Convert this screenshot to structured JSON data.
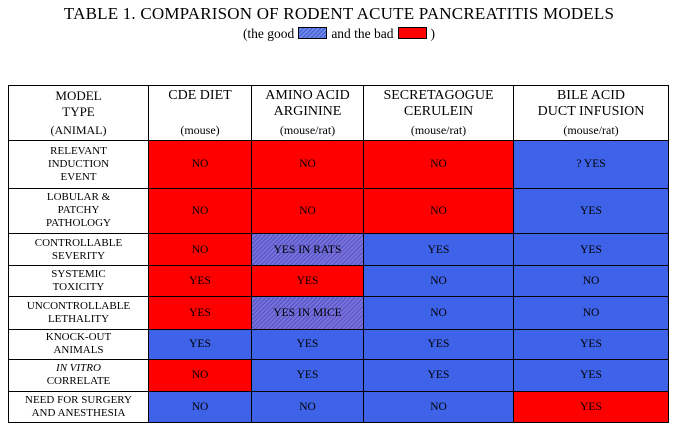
{
  "title": "TABLE 1. COMPARISON OF RODENT ACUTE PANCREATITIS MODELS",
  "subtitle": {
    "prefix": "(the good",
    "middle": "and the bad",
    "suffix": ")"
  },
  "colors": {
    "bad": "#ff0000",
    "good": "#3f63e8"
  },
  "columns": [
    {
      "line1": "MODEL",
      "line2": "TYPE",
      "line3": "(ANIMAL)"
    },
    {
      "line1": "CDE DIET",
      "line2": "",
      "line3": "(mouse)"
    },
    {
      "line1": "AMINO ACID",
      "line2": "ARGININE",
      "line3": "(mouse/rat)"
    },
    {
      "line1": "SECRETAGOGUE",
      "line2": "CERULEIN",
      "line3": "(mouse/rat)"
    },
    {
      "line1": "BILE ACID",
      "line2": "DUCT INFUSION",
      "line3": "(mouse/rat)"
    }
  ],
  "rows": [
    {
      "label": [
        "RELEVANT",
        "INDUCTION",
        "EVENT"
      ],
      "cells": [
        {
          "text": "NO",
          "color": "red"
        },
        {
          "text": "NO",
          "color": "red"
        },
        {
          "text": "NO",
          "color": "red"
        },
        {
          "text": "? YES",
          "color": "blue"
        }
      ]
    },
    {
      "label": [
        "LOBULAR &",
        "PATCHY",
        "PATHOLOGY"
      ],
      "cells": [
        {
          "text": "NO",
          "color": "red"
        },
        {
          "text": "NO",
          "color": "red"
        },
        {
          "text": "NO",
          "color": "red"
        },
        {
          "text": "YES",
          "color": "blue"
        }
      ]
    },
    {
      "label": [
        "CONTROLLABLE",
        "SEVERITY"
      ],
      "cells": [
        {
          "text": "NO",
          "color": "red"
        },
        {
          "text": "YES IN RATS",
          "color": "hatch"
        },
        {
          "text": "YES",
          "color": "blue"
        },
        {
          "text": "YES",
          "color": "blue"
        }
      ]
    },
    {
      "label": [
        "SYSTEMIC",
        "TOXICITY"
      ],
      "cells": [
        {
          "text": "YES",
          "color": "red"
        },
        {
          "text": "YES",
          "color": "red"
        },
        {
          "text": "NO",
          "color": "blue"
        },
        {
          "text": "NO",
          "color": "blue"
        }
      ]
    },
    {
      "label": [
        "UNCONTROLLABLE",
        "LETHALITY"
      ],
      "cells": [
        {
          "text": "YES",
          "color": "red"
        },
        {
          "text": "YES IN MICE",
          "color": "hatch"
        },
        {
          "text": "NO",
          "color": "blue"
        },
        {
          "text": "NO",
          "color": "blue"
        }
      ]
    },
    {
      "label": [
        "KNOCK-OUT",
        "ANIMALS"
      ],
      "cells": [
        {
          "text": "YES",
          "color": "blue"
        },
        {
          "text": "YES",
          "color": "blue"
        },
        {
          "text": "YES",
          "color": "blue"
        },
        {
          "text": "YES",
          "color": "blue"
        }
      ]
    },
    {
      "label": [
        "IN VITRO",
        "CORRELATE"
      ],
      "italic_first": true,
      "cells": [
        {
          "text": "NO",
          "color": "red"
        },
        {
          "text": "YES",
          "color": "blue"
        },
        {
          "text": "YES",
          "color": "blue"
        },
        {
          "text": "YES",
          "color": "blue"
        }
      ]
    },
    {
      "label": [
        "NEED FOR SURGERY",
        "AND ANESTHESIA"
      ],
      "cells": [
        {
          "text": "NO",
          "color": "blue"
        },
        {
          "text": "NO",
          "color": "blue"
        },
        {
          "text": "NO",
          "color": "blue"
        },
        {
          "text": "YES",
          "color": "red"
        }
      ]
    }
  ]
}
